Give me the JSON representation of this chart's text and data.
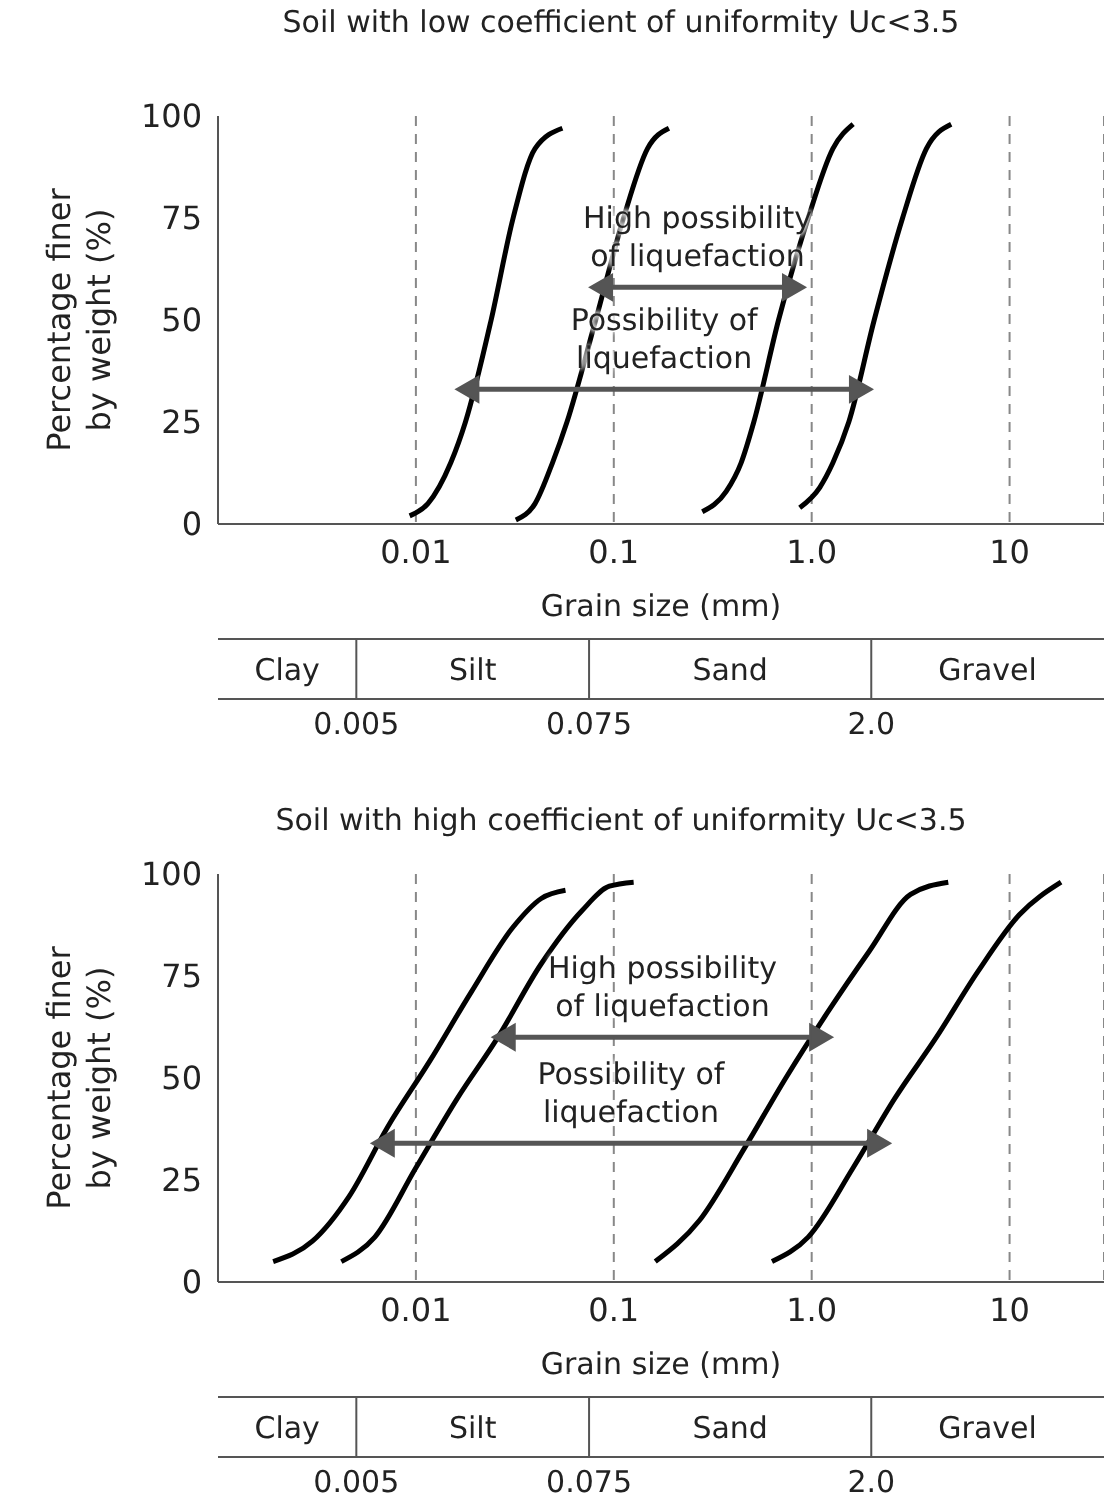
{
  "chart_data": [
    {
      "type": "line",
      "title": "Soil with low coefficient of uniformity Uc<3.5",
      "xlabel": "Grain size (mm)",
      "ylabel": "Percentage finer by weight (%)",
      "log": "x",
      "grid": "x",
      "xlim": [
        0.001,
        30
      ],
      "xticks": [
        0.01,
        0.1,
        {
          "value": 1,
          "label": "1.0"
        },
        10
      ],
      "ylim": [
        0,
        100
      ],
      "yticks": [
        0,
        25,
        50,
        75,
        100
      ],
      "series": [
        {
          "color": "#000000",
          "x": [
            0.0093,
            0.0115,
            0.015,
            0.0178,
            0.024,
            0.031,
            0.04,
            0.055
          ],
          "values": [
            2,
            5,
            15,
            25,
            50,
            75,
            92,
            97
          ]
        },
        {
          "color": "#000000",
          "x": [
            0.032,
            0.04,
            0.049,
            0.058,
            0.081,
            0.112,
            0.148,
            0.19
          ],
          "values": [
            1,
            5,
            15,
            25,
            50,
            75,
            92,
            97
          ]
        },
        {
          "color": "#000000",
          "x": [
            0.28,
            0.37,
            0.44,
            0.51,
            0.68,
            0.96,
            1.28,
            1.62
          ],
          "values": [
            3,
            8,
            15,
            25,
            50,
            75,
            92,
            98
          ]
        },
        {
          "color": "#000000",
          "x": [
            0.87,
            1.1,
            1.28,
            1.54,
            2.07,
            2.88,
            3.8,
            5.07
          ],
          "values": [
            4,
            9,
            15,
            25,
            50,
            75,
            92,
            98
          ]
        },
        {
          "color": "#555555",
          "marker": "triangle",
          "x": [
            0.09,
            0.78
          ],
          "values": [
            58,
            58
          ]
        },
        {
          "color": "#555555",
          "marker": "triangle",
          "x": [
            0.019,
            1.7
          ],
          "values": [
            33,
            33
          ]
        }
      ],
      "annotations": [
        "High possibility of liquefaction",
        "Possibility of liquefaction",
        "Clay",
        "Silt",
        "Sand",
        "Gravel",
        "0.005",
        "0.075",
        "2.0"
      ]
    },
    {
      "type": "line",
      "title": "Soil with high coefficient of uniformity Uc<3.5",
      "xlabel": "Grain size (mm)",
      "ylabel": "Percentage finer by weight (%)",
      "log": "x",
      "grid": "x",
      "xlim": [
        0.001,
        30
      ],
      "xticks": [
        0.01,
        0.1,
        {
          "value": 1,
          "label": "1.0"
        },
        10
      ],
      "ylim": [
        0,
        100
      ],
      "yticks": [
        0,
        25,
        50,
        75,
        100
      ],
      "series": [
        {
          "color": "#000000",
          "x": [
            0.0019,
            0.003,
            0.0046,
            0.0072,
            0.0117,
            0.019,
            0.031,
            0.043,
            0.057
          ],
          "values": [
            5,
            10,
            21,
            38,
            54,
            71,
            87,
            94,
            96
          ]
        },
        {
          "color": "#000000",
          "x": [
            0.0042,
            0.0062,
            0.01,
            0.0162,
            0.026,
            0.043,
            0.069,
            0.095,
            0.126
          ],
          "values": [
            5,
            11,
            28,
            45,
            60,
            78,
            91,
            97,
            98
          ]
        },
        {
          "color": "#000000",
          "x": [
            0.162,
            0.27,
            0.46,
            0.74,
            1.2,
            1.95,
            3.16,
            4.9
          ],
          "values": [
            5,
            15,
            33,
            50,
            66,
            81,
            95,
            98
          ]
        },
        {
          "color": "#000000",
          "x": [
            0.63,
            0.96,
            1.62,
            2.63,
            4.27,
            6.9,
            11.2,
            18.2
          ],
          "values": [
            5,
            11,
            28,
            45,
            60,
            76,
            90,
            98
          ]
        },
        {
          "color": "#555555",
          "marker": "triangle",
          "x": [
            0.029,
            1.07
          ],
          "values": [
            60,
            60
          ]
        },
        {
          "color": "#555555",
          "marker": "triangle",
          "x": [
            0.0071,
            2.1
          ],
          "values": [
            34,
            34
          ]
        }
      ],
      "annotations": [
        "High possibility of liquefaction",
        "Possibility of liquefaction",
        "Clay",
        "Silt",
        "Sand",
        "Gravel",
        "0.005",
        "0.075",
        "2.0"
      ]
    }
  ]
}
